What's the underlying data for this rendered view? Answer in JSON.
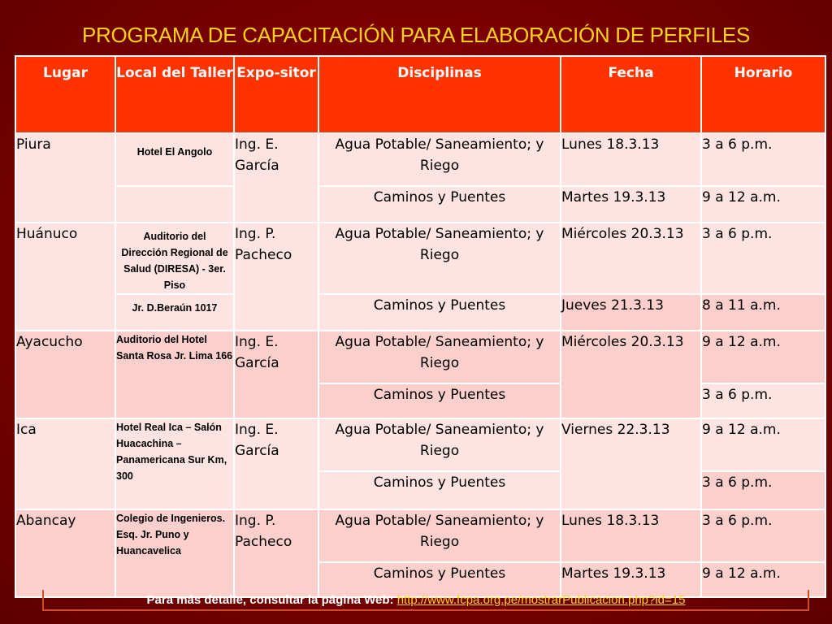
{
  "title": "PROGRAMA DE CAPACITACIÓN PARA ELABORACIÓN DE PERFILES",
  "headers": {
    "lugar": "Lugar",
    "local": "Local del Taller",
    "expositor": "Expo-sitor",
    "disciplinas": "Disciplinas",
    "fecha": "Fecha",
    "horario": "Horario"
  },
  "rows": {
    "piura": {
      "lugar": "Piura",
      "local": "Hotel El Angolo",
      "expositor": "Ing. E. García",
      "disc1": "Agua Potable/ Saneamiento; y Riego",
      "disc2": "Caminos y Puentes",
      "fecha1": "Lunes 18.3.13",
      "fecha2": "Martes 19.3.13",
      "hora1": "3 a 6 p.m.",
      "hora2": "9 a 12 a.m."
    },
    "huanuco": {
      "lugar": "Huánuco",
      "local1": "Auditorio del Dirección Regional de Salud (DIRESA) - 3er. Piso",
      "local2": "Jr. D.Beraún 1017",
      "expositor": "Ing. P. Pacheco",
      "disc1": "Agua Potable/ Saneamiento; y Riego",
      "disc2": "Caminos y Puentes",
      "fecha1": "Miércoles 20.3.13",
      "fecha2": "Jueves 21.3.13",
      "hora1": "3 a 6 p.m.",
      "hora2": "8 a 11 a.m."
    },
    "ayacucho": {
      "lugar": "Ayacucho",
      "local": "Auditorio del Hotel Santa Rosa Jr. Lima 166",
      "expositor": "Ing. E. García",
      "disc1": "Agua Potable/ Saneamiento; y Riego",
      "disc2": "Caminos y Puentes",
      "fecha": "Miércoles 20.3.13",
      "hora1": "9 a 12 a.m.",
      "hora2": "3 a 6 p.m."
    },
    "ica": {
      "lugar": "Ica",
      "local": "Hotel Real Ica – Salón Huacachina – Panamericana Sur Km, 300",
      "expositor": "Ing. E. García",
      "disc1": "Agua Potable/ Saneamiento; y Riego",
      "disc2": "Caminos y Puentes",
      "fecha": "Viernes 22.3.13",
      "hora1": "9 a 12 a.m.",
      "hora2": "3 a 6 p.m."
    },
    "abancay": {
      "lugar": "Abancay",
      "local": "Colegio de Ingenieros. Esq. Jr. Puno y Huancavelica",
      "expositor": "Ing. P. Pacheco",
      "disc1": "Agua Potable/ Saneamiento; y Riego",
      "disc2": "Caminos y Puentes",
      "fecha1": "Lunes 18.3.13",
      "fecha2": "Martes 19.3.13",
      "hora1": "3 a 6 p.m.",
      "hora2": "9 a 12 a.m."
    }
  },
  "footer": {
    "text": "Para más detalle, consultar la página Web:",
    "link": "http://www.fcpa.org.pe/mostrarPublicacion.php?id=15"
  },
  "colors": {
    "background": "#7a0000",
    "title": "#ffd21a",
    "header": "#ff3300",
    "cell_light": "#fde3e1",
    "cell_dark": "#fbd0cc"
  }
}
